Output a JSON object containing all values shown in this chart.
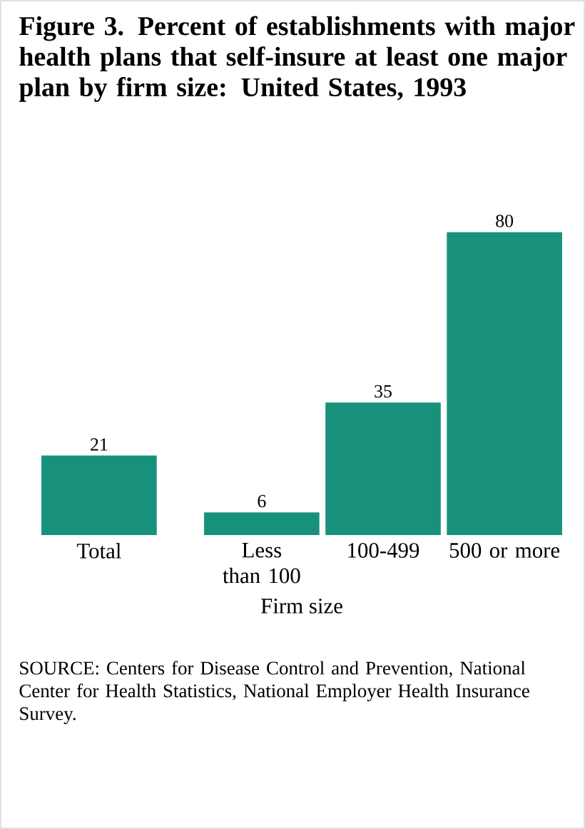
{
  "chart_data": {
    "type": "bar",
    "title": "Figure 3. Percent of establishments with major health plans that self-insure at least one major plan by firm size: United States, 1993",
    "categories": [
      "Total",
      "Less than 100",
      "100-499",
      "500 or more"
    ],
    "values": [
      21,
      6,
      35,
      80
    ],
    "color": "#17917c",
    "data_labels": true,
    "xlabel": "Firm size",
    "annotations": [
      "SOURCE: Centers for Disease Control and Prevention, National Center for Health Statistics, National Employer Health Insurance Survey."
    ]
  }
}
